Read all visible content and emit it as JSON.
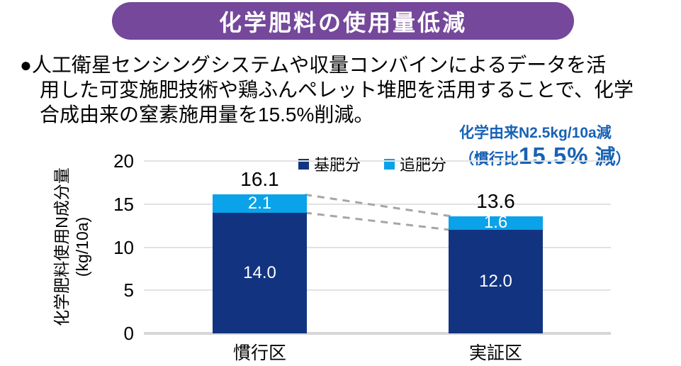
{
  "banner": {
    "title": "化学肥料の使用量低減",
    "bg_color": "#75489B"
  },
  "intro": {
    "line1": "●人工衛星センシングシステムや収量コンバインによるデータを活",
    "line2": "用した可変施肥技術や鶏ふんペレット堆肥を活用することで、化学",
    "line3": "合成由来の窒素施用量を15.5%削減。"
  },
  "annotation": {
    "line1": "化学由来N2.5kg/10a減",
    "line2_open": "（慣行比",
    "line2_value": "15.5%",
    "line2_emphasis": "減",
    "line2_close": "）",
    "text_color": "#1762B5"
  },
  "chart_data": {
    "type": "bar",
    "stacked": true,
    "categories": [
      "慣行区",
      "実証区"
    ],
    "series": [
      {
        "name": "基肥分",
        "color": "#123480",
        "values": [
          14.0,
          12.0
        ],
        "labels": [
          "14.0",
          "12.0"
        ]
      },
      {
        "name": "追肥分",
        "color": "#0AA2E8",
        "values": [
          2.1,
          1.6
        ],
        "labels": [
          "2.1",
          "1.6"
        ]
      }
    ],
    "totals": [
      16.1,
      13.6
    ],
    "total_labels": [
      "16.1",
      "13.6"
    ],
    "ylabel": "化学肥料使用N成分量",
    "ylabel_unit": "(kg/10a)",
    "ylim": [
      0,
      20
    ],
    "yticks": [
      0,
      5,
      10,
      15,
      20
    ],
    "grid": true,
    "legend_position": "top",
    "connector_lines": true,
    "grid_color": "#E2E2E2",
    "connector_color": "#A6A6A6"
  }
}
